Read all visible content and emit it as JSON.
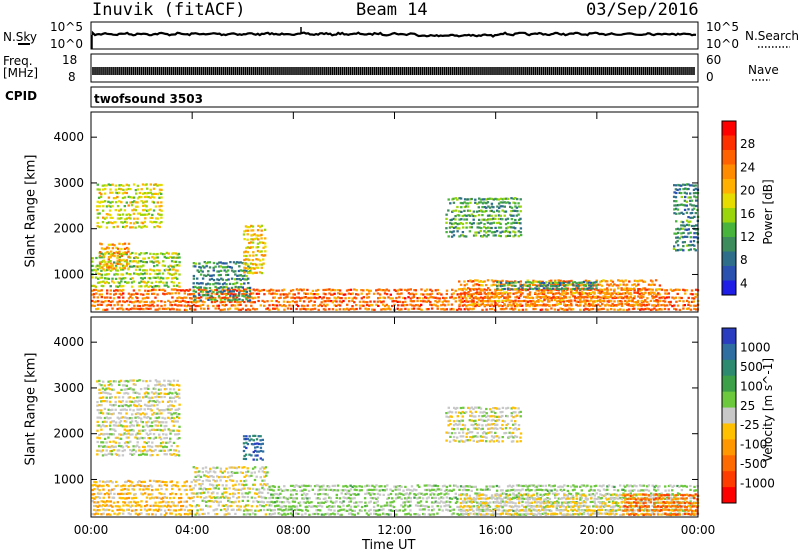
{
  "header": {
    "station": "Inuvik (fitACF)",
    "beam": "Beam 14",
    "date": "03/Sep/2016"
  },
  "strips": {
    "nsky": {
      "label": "N.Sky",
      "tick_top": "10^5",
      "tick_bot": "10^0",
      "right_top": "10^5",
      "right_bot": "10^0",
      "right_label": "N.Search"
    },
    "freq": {
      "label_line1": "Freq.",
      "label_line2": "[MHz]",
      "tick_top": "18",
      "tick_bot": "8",
      "right_top": "60",
      "right_bot": "0",
      "right_label": "Nave"
    },
    "cpid": {
      "label": "CPID",
      "program": "twofsound 3503"
    }
  },
  "axes": {
    "ylabel": "Slant Range [km]",
    "xlabel": "Time UT",
    "yticks": [
      "4000",
      "3000",
      "2000",
      "1000"
    ],
    "xticks": [
      "00:00",
      "04:00",
      "08:00",
      "12:00",
      "16:00",
      "20:00",
      "00:00"
    ]
  },
  "colorbars": {
    "power": {
      "label": "Power [dB]",
      "ticks": [
        "28",
        "24",
        "20",
        "16",
        "12",
        "8",
        "4"
      ],
      "colors": [
        "#ff0000",
        "#ff3000",
        "#ff6000",
        "#ff8c00",
        "#ffb000",
        "#e6dc00",
        "#9ad40a",
        "#49b43c",
        "#3c8c5c",
        "#2e6e8a",
        "#2a50b0",
        "#1e1ee6"
      ]
    },
    "velocity": {
      "label": "Velocity [m s^-1]",
      "ticks": [
        "1000",
        "500",
        "100",
        "25",
        "-25",
        "-100",
        "-500",
        "-1000"
      ],
      "colors": [
        "#2a3cc0",
        "#2e6ea0",
        "#2e8a6e",
        "#3ca048",
        "#6cc83c",
        "#c8c8c8",
        "#ffc000",
        "#ff9800",
        "#ff6a00",
        "#ff3c00",
        "#ff0000"
      ]
    }
  },
  "chart_data": [
    {
      "type": "heatmap",
      "title": "Power",
      "xlabel": "Time UT",
      "ylabel": "Slant Range [km]",
      "xlim": [
        "00:00",
        "24:00"
      ],
      "ylim": [
        180,
        4550
      ],
      "colorbar_range_dB": [
        0,
        30
      ],
      "regions": [
        {
          "t": [
            0.0,
            24.0
          ],
          "r": [
            200,
            700
          ],
          "value_dB": 24
        },
        {
          "t": [
            0.0,
            3.5
          ],
          "r": [
            700,
            1500
          ],
          "value_dB": 14
        },
        {
          "t": [
            0.2,
            2.8
          ],
          "r": [
            2000,
            3000
          ],
          "value_dB": 16
        },
        {
          "t": [
            0.3,
            1.5
          ],
          "r": [
            1100,
            1700
          ],
          "value_dB": 20
        },
        {
          "t": [
            4.0,
            6.3
          ],
          "r": [
            400,
            1300
          ],
          "value_dB": 8
        },
        {
          "t": [
            6.0,
            6.9
          ],
          "r": [
            1000,
            2100
          ],
          "value_dB": 18
        },
        {
          "t": [
            14.5,
            22.5
          ],
          "r": [
            300,
            900
          ],
          "value_dB": 22
        },
        {
          "t": [
            16.0,
            20.0
          ],
          "r": [
            650,
            850
          ],
          "value_dB": 8
        },
        {
          "t": [
            14.0,
            17.0
          ],
          "r": [
            1800,
            2700
          ],
          "value_dB": 10
        },
        {
          "t": [
            23.0,
            24.0
          ],
          "r": [
            1500,
            3000
          ],
          "value_dB": 8
        }
      ]
    },
    {
      "type": "heatmap",
      "title": "Velocity",
      "xlabel": "Time UT",
      "ylabel": "Slant Range [km]",
      "xlim": [
        "00:00",
        "24:00"
      ],
      "ylim": [
        180,
        4550
      ],
      "colorbar_range_ms": [
        -1000,
        1000
      ],
      "regions": [
        {
          "t": [
            0.0,
            4.0
          ],
          "r": [
            200,
            1000
          ],
          "value_ms": -200
        },
        {
          "t": [
            0.2,
            3.5
          ],
          "r": [
            1500,
            3200
          ],
          "value_ms": 0
        },
        {
          "t": [
            4.0,
            7.0
          ],
          "r": [
            200,
            1300
          ],
          "value_ms": 0
        },
        {
          "t": [
            6.0,
            6.8
          ],
          "r": [
            1400,
            2000
          ],
          "value_ms": 800
        },
        {
          "t": [
            7.0,
            24.0
          ],
          "r": [
            200,
            900
          ],
          "value_ms": 120
        },
        {
          "t": [
            14.5,
            24.0
          ],
          "r": [
            200,
            700
          ],
          "value_ms": -80
        },
        {
          "t": [
            21.0,
            24.0
          ],
          "r": [
            200,
            700
          ],
          "value_ms": -600
        },
        {
          "t": [
            14.0,
            17.0
          ],
          "r": [
            1800,
            2600
          ],
          "value_ms": 0
        }
      ]
    }
  ]
}
